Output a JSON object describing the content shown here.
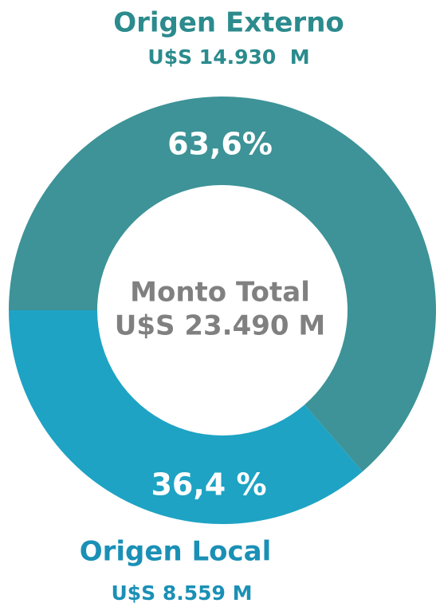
{
  "chart_data": {
    "type": "donut",
    "categories": [
      "Origen Externo",
      "Origen Local"
    ],
    "values": [
      63.6,
      36.4
    ],
    "value_labels": [
      "63,6%",
      "36,4 %"
    ],
    "amounts": [
      "U$S 14.930  M",
      "U$S 8.559 M"
    ],
    "colors": [
      "#3d9397",
      "#1ea3c4"
    ],
    "label_colors": [
      "#2b8b8d",
      "#1a90b6"
    ],
    "center_title": "Monto Total",
    "center_value": "U$S 23.490 M"
  }
}
